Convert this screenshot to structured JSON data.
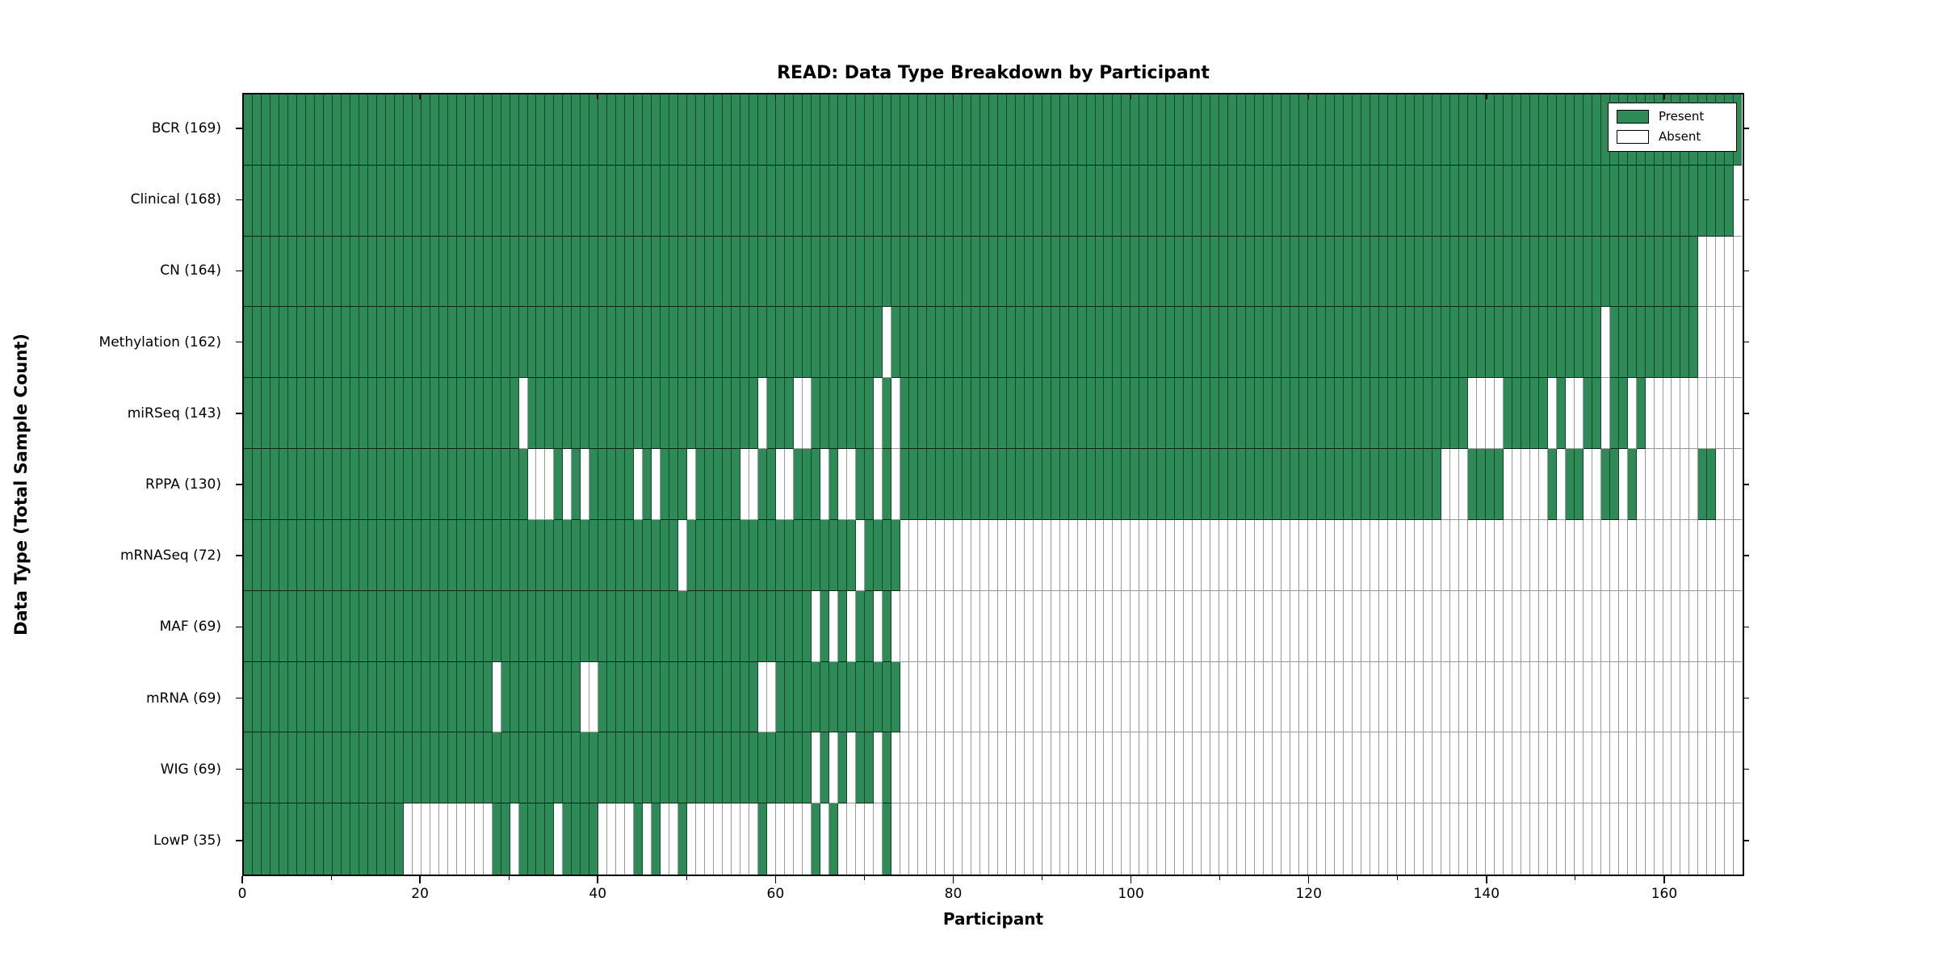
{
  "chart_data": {
    "type": "heatmap",
    "title": "READ: Data Type Breakdown by Participant",
    "xlabel": "Participant",
    "ylabel": "Data Type (Total Sample Count)",
    "n_participants": 169,
    "x_range": [
      0,
      169
    ],
    "x_ticks_major": [
      0,
      20,
      40,
      60,
      80,
      100,
      120,
      140,
      160
    ],
    "x_ticks_minor": [
      10,
      30,
      50,
      70,
      90,
      110,
      130,
      150
    ],
    "grid": "per-cell gridlines",
    "legend_position": "upper right",
    "legend": [
      {
        "label": "Present",
        "color": "#2e8b57"
      },
      {
        "label": "Absent",
        "color": "#ffffff"
      }
    ],
    "colors": {
      "present": "#2e8b57",
      "absent": "#ffffff",
      "plot_border": "#000000",
      "gridline_on_present": "rgba(0,0,0,0.5)",
      "gridline_on_absent": "#9a9a9a"
    },
    "rows": [
      {
        "label": "BCR (169)",
        "name": "BCR",
        "count": 169,
        "present_runs": [
          [
            0,
            168
          ]
        ]
      },
      {
        "label": "Clinical (168)",
        "name": "Clinical",
        "count": 168,
        "present_runs": [
          [
            0,
            167
          ]
        ]
      },
      {
        "label": "CN (164)",
        "name": "CN",
        "count": 164,
        "present_runs": [
          [
            0,
            163
          ]
        ]
      },
      {
        "label": "Methylation (162)",
        "name": "Methylation",
        "count": 162,
        "present_runs": [
          [
            0,
            71
          ],
          [
            73,
            152
          ],
          [
            154,
            163
          ]
        ]
      },
      {
        "label": "miRSeq (143)",
        "name": "miRSeq",
        "count": 143,
        "present_runs": [
          [
            0,
            30
          ],
          [
            32,
            57
          ],
          [
            59,
            61
          ],
          [
            64,
            70
          ],
          [
            72,
            72
          ],
          [
            74,
            137
          ],
          [
            142,
            146
          ],
          [
            148,
            148
          ],
          [
            151,
            152
          ],
          [
            154,
            155
          ],
          [
            157,
            157
          ]
        ]
      },
      {
        "label": "RPPA (130)",
        "name": "RPPA",
        "count": 130,
        "present_runs": [
          [
            0,
            31
          ],
          [
            35,
            35
          ],
          [
            37,
            37
          ],
          [
            39,
            43
          ],
          [
            45,
            45
          ],
          [
            47,
            49
          ],
          [
            51,
            55
          ],
          [
            58,
            59
          ],
          [
            62,
            64
          ],
          [
            66,
            66
          ],
          [
            69,
            70
          ],
          [
            72,
            72
          ],
          [
            74,
            134
          ],
          [
            138,
            141
          ],
          [
            147,
            147
          ],
          [
            149,
            150
          ],
          [
            153,
            154
          ],
          [
            156,
            156
          ],
          [
            164,
            165
          ]
        ]
      },
      {
        "label": "mRNASeq (72)",
        "name": "mRNASeq",
        "count": 72,
        "present_runs": [
          [
            0,
            48
          ],
          [
            50,
            68
          ],
          [
            70,
            73
          ]
        ]
      },
      {
        "label": "MAF (69)",
        "name": "MAF",
        "count": 69,
        "present_runs": [
          [
            0,
            63
          ],
          [
            65,
            65
          ],
          [
            67,
            67
          ],
          [
            69,
            70
          ],
          [
            72,
            72
          ]
        ]
      },
      {
        "label": "mRNA (69)",
        "name": "mRNA",
        "count": 69,
        "present_runs": [
          [
            0,
            27
          ],
          [
            29,
            37
          ],
          [
            40,
            57
          ],
          [
            60,
            73
          ]
        ]
      },
      {
        "label": "WIG (69)",
        "name": "WIG",
        "count": 69,
        "present_runs": [
          [
            0,
            63
          ],
          [
            65,
            65
          ],
          [
            67,
            67
          ],
          [
            69,
            70
          ],
          [
            72,
            72
          ]
        ]
      },
      {
        "label": "LowP (35)",
        "name": "LowP",
        "count": 35,
        "present_runs": [
          [
            0,
            17
          ],
          [
            28,
            29
          ],
          [
            31,
            34
          ],
          [
            36,
            39
          ],
          [
            44,
            44
          ],
          [
            46,
            46
          ],
          [
            49,
            49
          ],
          [
            58,
            58
          ],
          [
            64,
            64
          ],
          [
            66,
            66
          ],
          [
            72,
            72
          ]
        ]
      }
    ]
  }
}
